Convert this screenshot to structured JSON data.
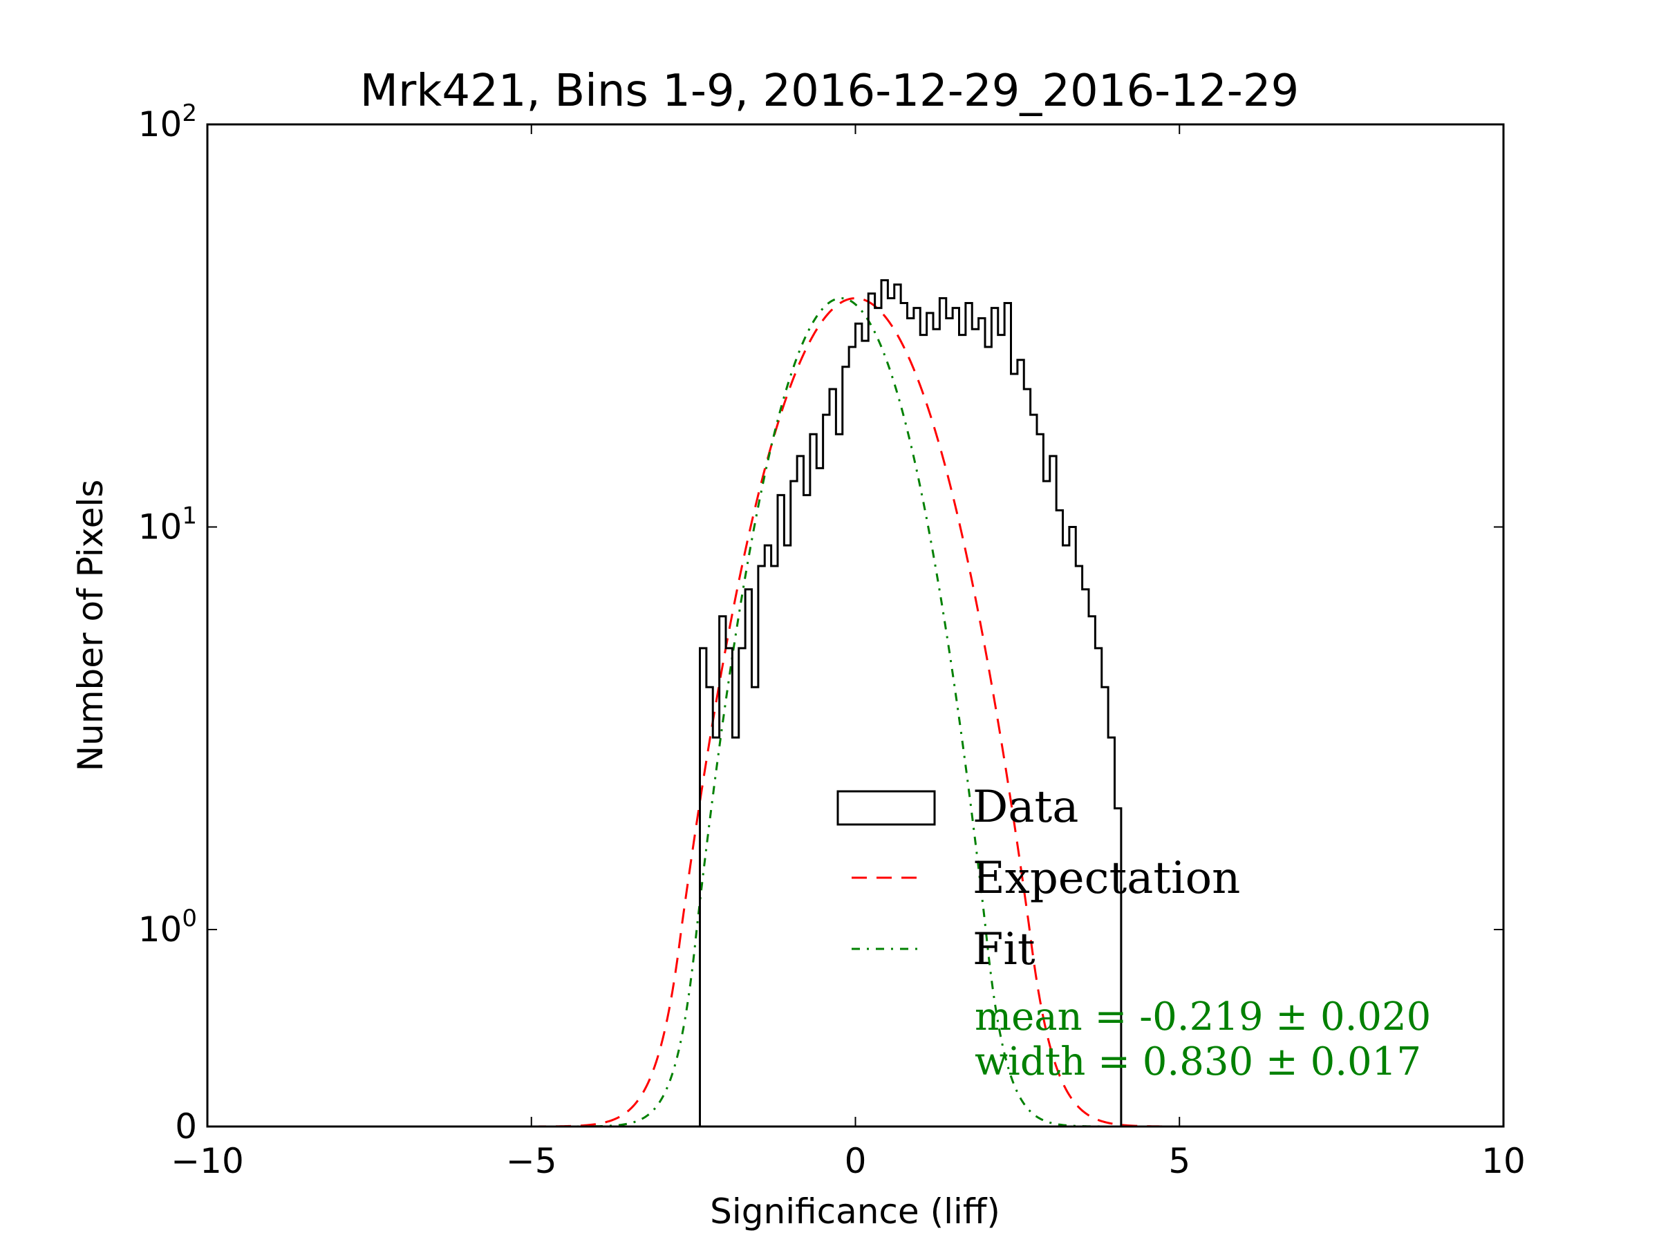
{
  "chart_data": {
    "type": "histogram",
    "title": "Mrk421, Bins 1-9, 2016-12-29_2016-12-29",
    "xlabel": "Significance (liff)",
    "ylabel": "Number of Pixels",
    "xlim": [
      -10,
      10
    ],
    "x_ticks": [
      {
        "value": -10,
        "label": "−10"
      },
      {
        "value": -5,
        "label": "−5"
      },
      {
        "value": 0,
        "label": "0"
      },
      {
        "value": 5,
        "label": "5"
      },
      {
        "value": 10,
        "label": "10"
      }
    ],
    "y_scale": "symlog",
    "y_ticks": [
      {
        "value": 0,
        "label": "0",
        "base": "",
        "exp": ""
      },
      {
        "value": 1,
        "label": "10^0",
        "base": "10",
        "exp": "0"
      },
      {
        "value": 10,
        "label": "10^1",
        "base": "10",
        "exp": "1"
      },
      {
        "value": 100,
        "label": "10^2",
        "base": "10",
        "exp": "2"
      }
    ],
    "legend": {
      "placement": "lower-right",
      "entries": [
        "Data",
        "Expectation",
        "Fit"
      ]
    },
    "annotation": {
      "mean_text": "mean = -0.219 ± 0.020",
      "width_text": "width = 0.830 ± 0.017"
    },
    "series": [
      {
        "name": "Data",
        "style": "step",
        "color": "#000000",
        "bin_width": 0.1,
        "bins_start": -2.4,
        "counts": [
          5,
          4,
          3,
          6,
          5,
          3,
          5,
          7,
          4,
          8,
          9,
          8,
          12,
          9,
          13,
          15,
          12,
          17,
          14,
          19,
          22,
          17,
          25,
          28,
          32,
          29,
          38,
          35,
          41,
          37,
          40,
          36,
          33,
          35,
          30,
          34,
          31,
          37,
          33,
          35,
          30,
          36,
          31,
          33,
          28,
          35,
          30,
          36,
          24,
          26,
          22,
          19,
          17,
          13,
          15,
          11,
          9,
          10,
          8,
          7,
          6,
          5,
          4,
          3,
          2
        ]
      },
      {
        "name": "Expectation",
        "style": "dashed",
        "color": "#ff0000",
        "mean": 0.0,
        "sigma": 1.0,
        "amplitude": 37
      },
      {
        "name": "Fit",
        "style": "dashdot",
        "color": "#008000",
        "mean": -0.219,
        "sigma": 0.83,
        "amplitude": 37
      }
    ]
  }
}
